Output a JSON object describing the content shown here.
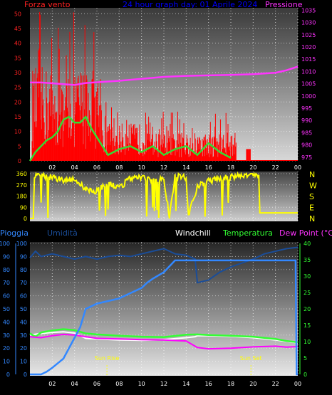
{
  "colors": {
    "wind": "#ff0000",
    "gust_avg": "#33dd33",
    "pressure": "#ff33ff",
    "wind_dir": "#ffff00",
    "rain": "#3388ff",
    "humidity": "#1a4d99",
    "temperature": "#33ff33",
    "windchill": "#ffffff",
    "dewpoint": "#ff00ff",
    "title": "#0000ff"
  },
  "chart_data": [
    {
      "type": "line",
      "name_id": "wind-pressure",
      "title": "24 hour graph day: 01 Aprile 2024",
      "left_label": "Forza vento",
      "right_label": "Pressione",
      "x_ticks": [
        "02",
        "04",
        "06",
        "08",
        "10",
        "12",
        "14",
        "16",
        "18",
        "20",
        "22",
        "00"
      ],
      "x_range_hours": [
        0,
        24
      ],
      "y_left_ticks": [
        "0",
        "5",
        "10",
        "15",
        "20",
        "25",
        "30",
        "35",
        "40",
        "45",
        "50"
      ],
      "y_left_range": [
        0,
        52
      ],
      "y_right_ticks": [
        "975",
        "980",
        "985",
        "990",
        "995",
        "1000",
        "1005",
        "1010",
        "1015",
        "1020",
        "1025",
        "1030",
        "1035"
      ],
      "y_right_range": [
        973.5,
        1036
      ],
      "pressure": {
        "x": [
          0,
          1,
          2,
          3,
          4,
          5,
          6,
          8,
          10,
          12,
          14,
          16,
          18,
          20,
          22,
          23,
          24
        ],
        "y": [
          1005.5,
          1005.5,
          1005.2,
          1004.8,
          1004.5,
          1005.3,
          1005.6,
          1006.2,
          1007.0,
          1007.8,
          1008.2,
          1008.4,
          1008.6,
          1008.9,
          1009.5,
          1010.5,
          1012.0
        ]
      },
      "gust_avg": {
        "x": [
          0,
          0.5,
          1,
          1.5,
          2,
          2.5,
          3,
          3.5,
          4,
          4.5,
          5,
          5.5,
          6,
          6.5,
          7,
          7.5,
          8,
          9,
          10,
          11,
          12,
          13,
          14,
          15,
          16,
          17,
          18
        ],
        "y": [
          0,
          3,
          5,
          7,
          8,
          10,
          14,
          15,
          13,
          13,
          15,
          11,
          8,
          5,
          2,
          3,
          4,
          5,
          3,
          5,
          2,
          4,
          5,
          2,
          6,
          3,
          1
        ]
      },
      "wind_segments": [
        {
          "from": 0.2,
          "to": 6.5,
          "peak": 52,
          "base": 20
        },
        {
          "from": 6.5,
          "to": 10.5,
          "peak": 20,
          "base": 8
        },
        {
          "from": 10.5,
          "to": 18.5,
          "peak": 17,
          "base": 6
        }
      ]
    },
    {
      "type": "line",
      "name_id": "wind-direction",
      "x_ticks": [
        "02",
        "04",
        "06",
        "08",
        "10",
        "12",
        "14",
        "16",
        "18",
        "20",
        "22",
        "00"
      ],
      "y_ticks": [
        "0",
        "90",
        "180",
        "270",
        "360"
      ],
      "y_range": [
        0,
        360
      ],
      "right_labels": [
        "N",
        "W",
        "S",
        "E",
        "N"
      ],
      "direction": {
        "x": [
          0,
          0.3,
          0.4,
          1,
          2,
          3,
          4,
          4.8,
          5,
          6,
          7,
          8,
          9,
          10,
          11,
          12,
          12.5,
          13,
          14,
          14.2,
          15,
          16,
          17,
          18,
          19,
          20,
          20.5,
          20.6,
          24
        ],
        "y": [
          0,
          0,
          350,
          340,
          330,
          310,
          320,
          250,
          230,
          220,
          280,
          250,
          320,
          330,
          300,
          320,
          10,
          340,
          330,
          20,
          260,
          300,
          320,
          330,
          350,
          350,
          350,
          45,
          45
        ]
      }
    },
    {
      "type": "line",
      "name_id": "rain-humidity-temp",
      "labels": [
        "Pioggia",
        "Umidità",
        "Windchill",
        "Temperatura",
        "Dew Point (°C)"
      ],
      "x_ticks": [
        "02",
        "04",
        "06",
        "08",
        "10",
        "12",
        "14",
        "16",
        "18",
        "20",
        "22",
        "00"
      ],
      "y_left_ticks": [
        "0",
        "10",
        "20",
        "30",
        "40",
        "50",
        "60",
        "70",
        "80",
        "90",
        "100"
      ],
      "y_left_range": [
        0,
        100
      ],
      "y_right_ticks": [
        "0",
        "5",
        "10",
        "15",
        "20",
        "25",
        "30",
        "35",
        "40"
      ],
      "y_right_range": [
        0,
        40
      ],
      "annotations": [
        {
          "label": "Sun Rise",
          "hour": 6.9
        },
        {
          "label": "Sun Set",
          "hour": 19.8
        }
      ],
      "humidity": {
        "x": [
          0,
          0.5,
          1,
          2,
          3,
          4,
          5,
          6,
          7,
          8,
          9,
          10,
          11,
          12,
          13,
          14,
          14.8,
          15,
          16,
          17,
          18,
          19,
          20,
          21,
          22,
          23,
          24
        ],
        "y": [
          89,
          94,
          90,
          92,
          90,
          88,
          90,
          88,
          90,
          91,
          90,
          92,
          94,
          96,
          92,
          91,
          88,
          70,
          72,
          78,
          82,
          85,
          88,
          92,
          94,
          96,
          97
        ]
      },
      "rain": {
        "x": [
          0,
          1,
          1.5,
          2,
          3,
          4,
          4.5,
          5,
          6,
          7,
          8,
          9,
          10,
          10.5,
          11,
          12,
          13,
          14,
          15,
          16,
          17,
          18,
          19,
          20,
          21,
          22,
          23,
          23.8,
          23.9,
          24
        ],
        "y": [
          0,
          0,
          2,
          5,
          12,
          28,
          36,
          50,
          54,
          56,
          58,
          62,
          66,
          70,
          73,
          78,
          87,
          87,
          87,
          87,
          87,
          87,
          87,
          87,
          87,
          87,
          87,
          87,
          0,
          0
        ]
      },
      "temperature": {
        "x": [
          0,
          0.5,
          1,
          2,
          3,
          4,
          5,
          6,
          8,
          10,
          12,
          14,
          15,
          16,
          18,
          20,
          22,
          23,
          24
        ],
        "y": [
          12.5,
          11.5,
          12.8,
          13.4,
          13.8,
          13.5,
          12.5,
          12.2,
          11.8,
          11.5,
          11.4,
          12.1,
          12.2,
          12.0,
          11.8,
          11.5,
          10.8,
          10.2,
          9.8
        ]
      },
      "windchill": {
        "x": [
          0,
          1,
          2,
          3,
          4,
          5,
          6,
          8,
          10,
          12,
          14,
          14.8,
          15,
          16,
          18,
          20,
          22,
          24
        ],
        "y": [
          12,
          12.5,
          12.8,
          13,
          12.6,
          11,
          10.8,
          10.5,
          10.4,
          10.6,
          11.2,
          11.5,
          11.8,
          11.8,
          11.6,
          11.2,
          10.5,
          9.6
        ]
      },
      "dewpoint": {
        "x": [
          0,
          1,
          2,
          3,
          4,
          5,
          6,
          8,
          10,
          12,
          14,
          15,
          16,
          18,
          20,
          22,
          23,
          24
        ],
        "y": [
          11.5,
          11.2,
          11.8,
          12.2,
          12,
          11.5,
          11,
          10.8,
          10.6,
          10.5,
          10.2,
          8.2,
          7.8,
          8.0,
          8.4,
          8.6,
          8.3,
          8.5
        ]
      }
    }
  ]
}
